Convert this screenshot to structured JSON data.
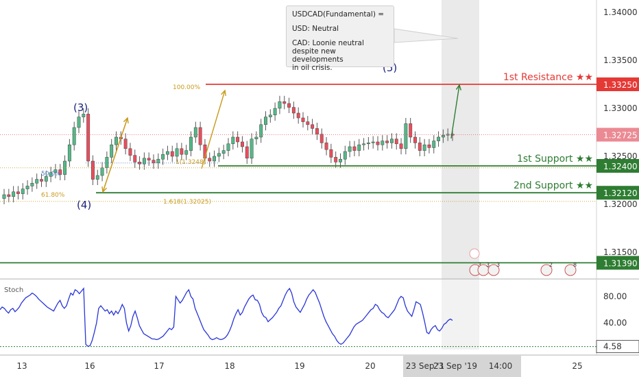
{
  "callout": {
    "line1": "USDCAD(Fundamental) =",
    "line2": "USD: Neutral",
    "line3": "CAD: Loonie neutral\ndespite new developments\nin oil crisis."
  },
  "colors": {
    "up": "#53b987",
    "down": "#eb4d5c",
    "resistance": "#e53935",
    "support": "#2e7d32",
    "fib": "#c99a1c",
    "stoch": "#2835d6",
    "shade": "#d9d9d9"
  },
  "chart_data": [
    {
      "type": "candlestick",
      "symbol": "USDCAD",
      "ylim": [
        1.3085,
        1.3425
      ],
      "y_ticks": [
        "1.34000",
        "1.33500",
        "1.33000",
        "1.32500",
        "1.32000",
        "1.31500"
      ],
      "x_ticks": [
        "13",
        "16",
        "17",
        "18",
        "19",
        "20",
        "25"
      ],
      "crosshair_dates": [
        "23 Sep '1",
        "23 Sep '19",
        "14:00"
      ],
      "levels": [
        {
          "label": "1st Resistance ★★",
          "price_label": "1.33250",
          "value": 1.3325,
          "color": "resistance"
        },
        {
          "label": "1st Support ★★",
          "price_label": "1.32400",
          "value": 1.324,
          "color": "support"
        },
        {
          "label": "2nd Support ★★",
          "price_label": "1.32120",
          "value": 1.3212,
          "color": "support"
        },
        {
          "label": "",
          "price_label": "1.31390",
          "value": 1.3139,
          "color": "support"
        }
      ],
      "last_price": {
        "label": "1.32725",
        "value": 1.32725
      },
      "waves": [
        "(3)",
        "(4)",
        "(5)"
      ],
      "fib_labels": [
        "100.00%",
        "50.0%",
        "61.80%",
        "1(1.3248)",
        "1.618(1.32025)"
      ],
      "event_badges": [
        "3",
        "3",
        "3",
        "2",
        "8"
      ],
      "closes": [
        1.321,
        1.3208,
        1.3213,
        1.3211,
        1.3216,
        1.3219,
        1.3222,
        1.3226,
        1.3224,
        1.3229,
        1.3233,
        1.3236,
        1.3231,
        1.3245,
        1.3262,
        1.328,
        1.3291,
        1.3294,
        1.3245,
        1.3226,
        1.323,
        1.3238,
        1.3249,
        1.3262,
        1.327,
        1.3268,
        1.3258,
        1.3251,
        1.3244,
        1.3242,
        1.3248,
        1.3246,
        1.3243,
        1.3247,
        1.3252,
        1.3255,
        1.325,
        1.3258,
        1.3252,
        1.3256,
        1.327,
        1.328,
        1.3262,
        1.3248,
        1.3245,
        1.325,
        1.3253,
        1.3256,
        1.3263,
        1.327,
        1.3265,
        1.326,
        1.3248,
        1.3268,
        1.327,
        1.3283,
        1.3291,
        1.3293,
        1.33,
        1.3307,
        1.3305,
        1.3301,
        1.3295,
        1.329,
        1.3286,
        1.3283,
        1.3279,
        1.3273,
        1.3264,
        1.3257,
        1.3249,
        1.3244,
        1.3247,
        1.3255,
        1.326,
        1.3256,
        1.3262,
        1.3263,
        1.3264,
        1.3265,
        1.3262,
        1.3266,
        1.3264,
        1.3268,
        1.3263,
        1.3258,
        1.3284,
        1.327,
        1.3264,
        1.3256,
        1.3262,
        1.3259,
        1.3266,
        1.327,
        1.3272,
        1.3273,
        1.3272
      ],
      "stoch": {
        "label": "Stoch",
        "ylim": [
          -2,
          100
        ],
        "y_ticks": [
          "80.00",
          "40.00"
        ],
        "level_label": "4.58",
        "level_value": 4.58,
        "values": [
          60,
          64,
          62,
          58,
          55,
          60,
          62,
          57,
          60,
          64,
          70,
          74,
          78,
          80,
          82,
          85,
          83,
          80,
          76,
          73,
          70,
          67,
          64,
          62,
          60,
          58,
          64,
          70,
          74,
          66,
          62,
          66,
          76,
          85,
          82,
          90,
          88,
          84,
          88,
          92,
          8,
          5,
          6,
          14,
          26,
          40,
          62,
          66,
          62,
          58,
          60,
          54,
          58,
          52,
          58,
          54,
          60,
          68,
          62,
          40,
          28,
          36,
          50,
          58,
          48,
          36,
          30,
          24,
          22,
          20,
          18,
          16,
          16,
          15,
          16,
          18,
          20,
          24,
          28,
          32,
          30,
          34,
          80,
          75,
          70,
          74,
          80,
          86,
          90,
          80,
          76,
          62,
          54,
          46,
          38,
          30,
          26,
          22,
          17,
          15,
          16,
          18,
          16,
          15,
          16,
          18,
          22,
          28,
          36,
          46,
          54,
          60,
          52,
          56,
          64,
          70,
          76,
          80,
          82,
          75,
          74,
          68,
          56,
          50,
          48,
          42,
          45,
          48,
          52,
          56,
          62,
          66,
          74,
          82,
          88,
          92,
          85,
          72,
          64,
          60,
          56,
          62,
          68,
          76,
          82,
          86,
          90,
          86,
          78,
          70,
          60,
          50,
          42,
          36,
          30,
          24,
          20,
          14,
          10,
          8,
          10,
          14,
          18,
          22,
          28,
          34,
          38,
          40,
          42,
          44,
          48,
          52,
          56,
          60,
          62,
          68,
          66,
          60,
          56,
          54,
          50,
          48,
          52,
          56,
          60,
          68,
          76,
          80,
          78,
          66,
          58,
          54,
          50,
          60,
          72,
          70,
          68,
          56,
          42,
          26,
          24,
          30,
          34,
          36,
          30,
          28,
          32,
          38,
          40,
          44,
          46,
          44
        ]
      }
    }
  ]
}
